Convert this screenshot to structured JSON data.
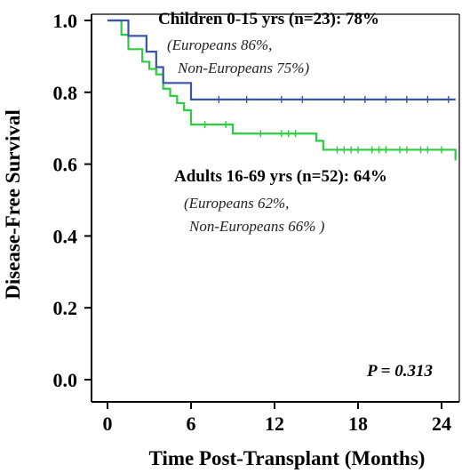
{
  "chart_data": {
    "type": "line",
    "title": "",
    "xlabel": "Time Post-Transplant (Months)",
    "ylabel": "Disease-Free Survival",
    "xlim": [
      0,
      25
    ],
    "ylim": [
      0,
      1
    ],
    "xticks": [
      0,
      6,
      12,
      18,
      24
    ],
    "xtick_labels": [
      "0",
      "6",
      "12",
      "18",
      "24"
    ],
    "yticks": [
      0,
      0.2,
      0.4,
      0.6,
      0.8,
      1.0
    ],
    "ytick_labels": [
      "0.0",
      "0.2",
      "0.4",
      "0.6",
      "0.8",
      "1.0"
    ],
    "grid": false,
    "step": true,
    "series": [
      {
        "name": "Children 0-15 yrs (n=23): 78%",
        "color": "#3a55a8",
        "steps": [
          [
            0,
            1.0
          ],
          [
            1.5,
            0.957
          ],
          [
            2.8,
            0.913
          ],
          [
            3.5,
            0.87
          ],
          [
            4.0,
            0.826
          ],
          [
            6.0,
            0.78
          ],
          [
            25,
            0.78
          ]
        ],
        "censor_x": [
          8,
          10,
          12.5,
          14,
          17,
          18.5,
          20,
          21.5,
          23,
          24.5
        ]
      },
      {
        "name": "Adults 16-69 yrs (n=52): 64%",
        "color": "#2ecc40",
        "steps": [
          [
            0,
            1.0
          ],
          [
            1.0,
            0.96
          ],
          [
            1.5,
            0.92
          ],
          [
            2.5,
            0.885
          ],
          [
            3.0,
            0.865
          ],
          [
            3.5,
            0.85
          ],
          [
            4.0,
            0.81
          ],
          [
            4.5,
            0.79
          ],
          [
            5.0,
            0.77
          ],
          [
            5.5,
            0.75
          ],
          [
            6.0,
            0.71
          ],
          [
            9.0,
            0.685
          ],
          [
            15.0,
            0.665
          ],
          [
            15.5,
            0.64
          ],
          [
            25,
            0.61
          ]
        ],
        "censor_x": [
          7,
          8.5,
          11,
          12.5,
          13,
          13.5,
          16.5,
          17,
          17.5,
          18,
          19,
          19.5,
          20,
          21,
          21.5,
          22.5,
          23,
          24
        ]
      }
    ],
    "annotations": {
      "children_label": "Children 0-15 yrs (n=23): 78%",
      "children_sub1": "(Europeans 86%,",
      "children_sub2": "Non-Europeans 75%)",
      "adults_label": "Adults 16-69 yrs (n=52): 64%",
      "adults_sub1": "(Europeans 62%,",
      "adults_sub2": "Non-Europeans 66% )",
      "p_value": "P = 0.313"
    }
  }
}
